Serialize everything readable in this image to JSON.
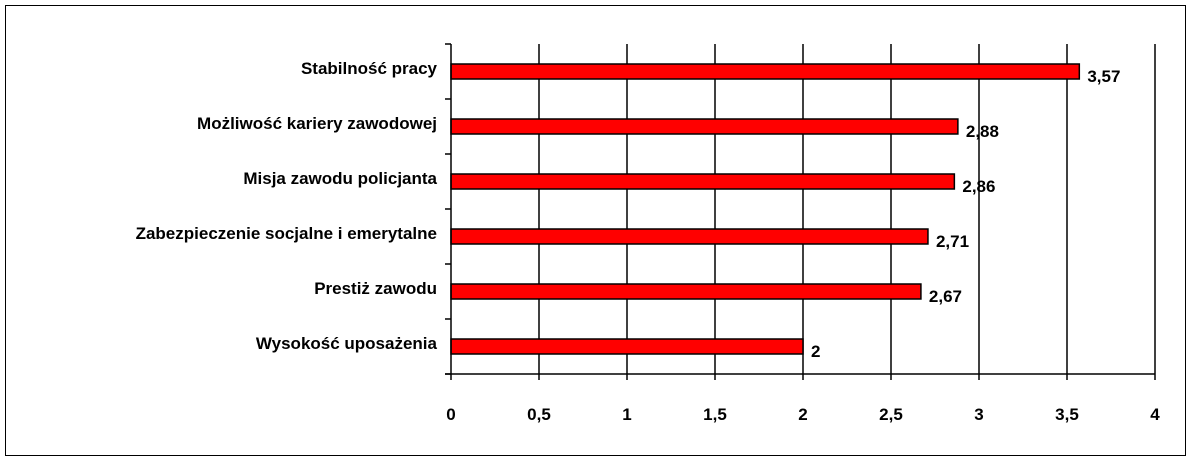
{
  "chart_data": {
    "type": "bar",
    "orientation": "horizontal",
    "categories": [
      "Stabilność pracy",
      "Możliwość kariery zawodowej",
      "Misja zawodu policjanta",
      "Zabezpieczenie socjalne i emerytalne",
      "Prestiż zawodu",
      "Wysokość uposażenia"
    ],
    "values": [
      3.57,
      2.88,
      2.86,
      2.71,
      2.67,
      2
    ],
    "data_labels": [
      "3,57",
      "2,88",
      "2,86",
      "2,71",
      "2,67",
      "2"
    ],
    "xlim": [
      0,
      4
    ],
    "x_ticks": [
      0,
      0.5,
      1,
      1.5,
      2,
      2.5,
      3,
      3.5,
      4
    ],
    "x_tick_labels": [
      "0",
      "0,5",
      "1",
      "1,5",
      "2",
      "2,5",
      "3",
      "3,5",
      "4"
    ],
    "grid": "vertical",
    "legend": "none",
    "bar_color": "#ff0000",
    "bar_edge_color": "#000000"
  }
}
